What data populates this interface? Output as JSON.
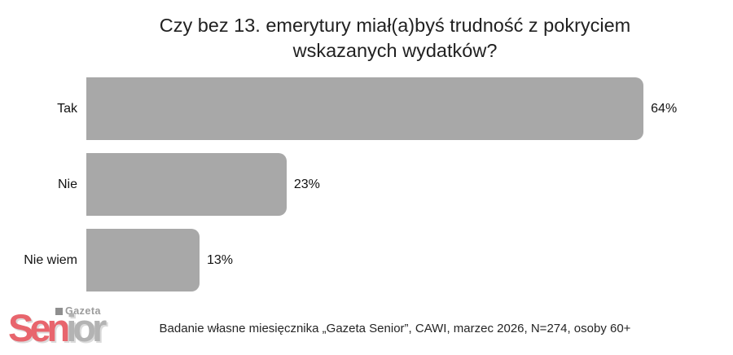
{
  "chart_data": {
    "type": "bar",
    "orientation": "horizontal",
    "title": "Czy bez 13. emerytury miał(a)byś trudność z pokryciem wskazanych wydatków?",
    "categories": [
      "Tak",
      "Nie",
      "Nie wiem"
    ],
    "values": [
      64,
      23,
      13
    ],
    "value_labels": [
      "64%",
      "23%",
      "13%"
    ],
    "xlabel": "",
    "ylabel": "",
    "xlim": [
      0,
      70
    ],
    "grid": false,
    "legend": false,
    "bar_color": "#a8a8a8",
    "value_label_color": "#121212",
    "category_label_color": "#121212"
  },
  "footer": {
    "source_note": "Badanie własne miesięcznika „Gazeta Senior”, CAWI, marzec 2026, N=274, osoby 60+"
  },
  "logo": {
    "brand_top": "Gazeta",
    "brand_main_left": "Sen",
    "brand_main_right": "ior",
    "red_color": "#e8656d",
    "gray_color": "#b3b3b3"
  }
}
